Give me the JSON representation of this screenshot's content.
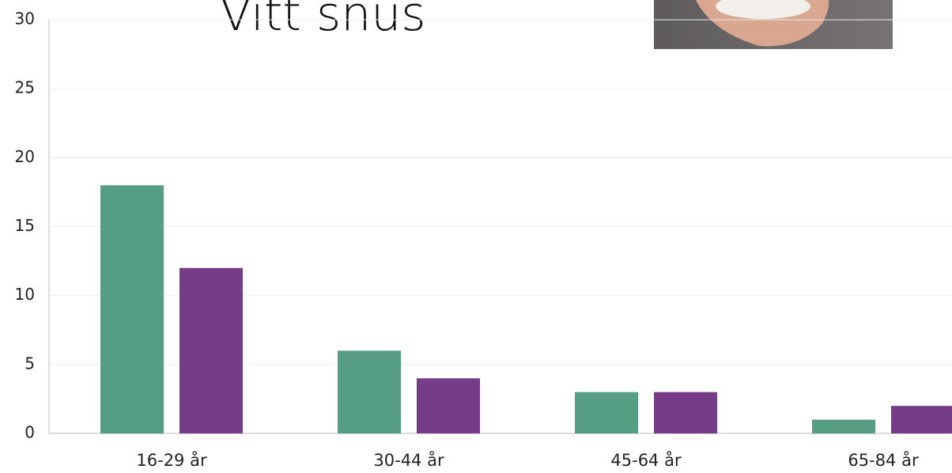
{
  "chart_data": {
    "type": "bar",
    "title": "Vitt snus",
    "categories": [
      "16-29 år",
      "30-44 år",
      "45-64 år",
      "65-84 år"
    ],
    "series": [
      {
        "color": "#559e83",
        "values": [
          18,
          6,
          3,
          1
        ]
      },
      {
        "color": "#763c87",
        "values": [
          12,
          4,
          3,
          2
        ]
      }
    ],
    "ylim": [
      0,
      30
    ],
    "yticks": [
      0,
      5,
      10,
      15,
      20,
      25,
      30
    ],
    "grid": true
  }
}
